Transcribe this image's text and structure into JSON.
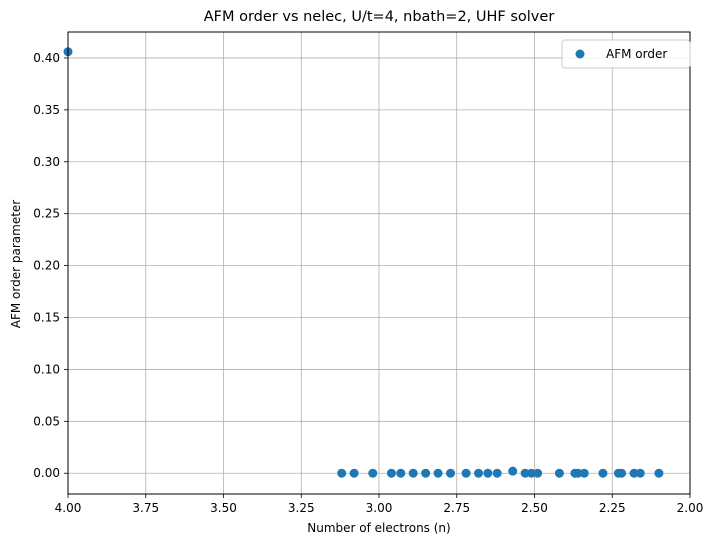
{
  "chart_data": {
    "type": "scatter",
    "title": "AFM order vs nelec, U/t=4, nbath=2, UHF solver",
    "xlabel": "Number of electrons (n)",
    "ylabel": "AFM order parameter",
    "xlim": [
      4.0,
      2.0
    ],
    "ylim": [
      -0.02,
      0.425
    ],
    "x_ticks": [
      "4.00",
      "3.75",
      "3.50",
      "3.25",
      "3.00",
      "2.75",
      "2.50",
      "2.25",
      "2.00"
    ],
    "x_tick_values": [
      4.0,
      3.75,
      3.5,
      3.25,
      3.0,
      2.75,
      2.5,
      2.25,
      2.0
    ],
    "y_ticks": [
      "0.00",
      "0.05",
      "0.10",
      "0.15",
      "0.20",
      "0.25",
      "0.30",
      "0.35",
      "0.40"
    ],
    "y_tick_values": [
      0.0,
      0.05,
      0.1,
      0.15,
      0.2,
      0.25,
      0.3,
      0.35,
      0.4
    ],
    "grid": true,
    "legend_position": "top-right",
    "series": [
      {
        "name": "AFM order",
        "color": "#1f77b4",
        "marker": "circle",
        "points": [
          {
            "x": 4.0,
            "y": 0.406
          },
          {
            "x": 3.12,
            "y": 0.0
          },
          {
            "x": 3.08,
            "y": 0.0
          },
          {
            "x": 3.02,
            "y": 0.0
          },
          {
            "x": 2.96,
            "y": 0.0
          },
          {
            "x": 2.93,
            "y": 0.0
          },
          {
            "x": 2.89,
            "y": 0.0
          },
          {
            "x": 2.85,
            "y": 0.0
          },
          {
            "x": 2.81,
            "y": 0.0
          },
          {
            "x": 2.77,
            "y": 0.0
          },
          {
            "x": 2.72,
            "y": 0.0
          },
          {
            "x": 2.68,
            "y": 0.0
          },
          {
            "x": 2.65,
            "y": 0.0
          },
          {
            "x": 2.62,
            "y": 0.0
          },
          {
            "x": 2.57,
            "y": 0.002
          },
          {
            "x": 2.53,
            "y": 0.0
          },
          {
            "x": 2.51,
            "y": 0.0
          },
          {
            "x": 2.49,
            "y": 0.0
          },
          {
            "x": 2.42,
            "y": 0.0
          },
          {
            "x": 2.37,
            "y": 0.0
          },
          {
            "x": 2.36,
            "y": 0.0
          },
          {
            "x": 2.34,
            "y": 0.0
          },
          {
            "x": 2.28,
            "y": 0.0
          },
          {
            "x": 2.23,
            "y": 0.0
          },
          {
            "x": 2.22,
            "y": 0.0
          },
          {
            "x": 2.18,
            "y": 0.0
          },
          {
            "x": 2.16,
            "y": 0.0
          },
          {
            "x": 2.1,
            "y": 0.0
          }
        ]
      }
    ]
  }
}
